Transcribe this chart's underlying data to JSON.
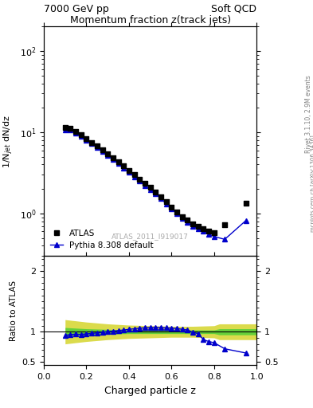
{
  "title_top_left": "7000 GeV pp",
  "title_top_right": "Soft QCD",
  "main_title": "Momentum fraction z(track jets)",
  "ylabel_main": "1/N$_{jet}$ dN/dz",
  "ylabel_ratio": "Ratio to ATLAS",
  "xlabel": "Charged particle z",
  "right_label_top": "Rivet 3.1.10, 2.9M events",
  "right_label_bot": "mcplots.cern.ch [arXiv:1306.3436]",
  "watermark": "ATLAS_2011_I919017",
  "xlim": [
    0.0,
    1.0
  ],
  "ylim_main": [
    0.3,
    200
  ],
  "ylim_ratio": [
    0.45,
    2.25
  ],
  "atlas_x": [
    0.1,
    0.125,
    0.15,
    0.175,
    0.2,
    0.225,
    0.25,
    0.275,
    0.3,
    0.325,
    0.35,
    0.375,
    0.4,
    0.425,
    0.45,
    0.475,
    0.5,
    0.525,
    0.55,
    0.575,
    0.6,
    0.625,
    0.65,
    0.675,
    0.7,
    0.725,
    0.75,
    0.775,
    0.8,
    0.85,
    0.95
  ],
  "atlas_y": [
    11.5,
    11.2,
    10.2,
    9.3,
    8.3,
    7.5,
    6.8,
    6.1,
    5.4,
    4.85,
    4.3,
    3.85,
    3.4,
    3.0,
    2.65,
    2.35,
    2.1,
    1.85,
    1.6,
    1.4,
    1.2,
    1.05,
    0.92,
    0.83,
    0.75,
    0.7,
    0.65,
    0.6,
    0.58,
    0.73,
    1.35
  ],
  "pythia_x": [
    0.1,
    0.125,
    0.15,
    0.175,
    0.2,
    0.225,
    0.25,
    0.275,
    0.3,
    0.325,
    0.35,
    0.375,
    0.4,
    0.425,
    0.45,
    0.475,
    0.5,
    0.525,
    0.55,
    0.575,
    0.6,
    0.625,
    0.65,
    0.675,
    0.7,
    0.725,
    0.75,
    0.775,
    0.8,
    0.85,
    0.95
  ],
  "pythia_y": [
    10.8,
    10.7,
    9.8,
    8.9,
    8.0,
    7.2,
    6.5,
    5.85,
    5.2,
    4.65,
    4.1,
    3.65,
    3.2,
    2.82,
    2.5,
    2.2,
    1.98,
    1.75,
    1.52,
    1.32,
    1.14,
    1.0,
    0.88,
    0.78,
    0.7,
    0.65,
    0.6,
    0.56,
    0.52,
    0.48,
    0.82
  ],
  "ratio_x": [
    0.1,
    0.125,
    0.15,
    0.175,
    0.2,
    0.225,
    0.25,
    0.275,
    0.3,
    0.325,
    0.35,
    0.375,
    0.4,
    0.425,
    0.45,
    0.475,
    0.5,
    0.525,
    0.55,
    0.575,
    0.6,
    0.625,
    0.65,
    0.675,
    0.7,
    0.725,
    0.75,
    0.775,
    0.8,
    0.85,
    0.95
  ],
  "ratio_y": [
    0.94,
    0.955,
    0.96,
    0.957,
    0.965,
    0.972,
    0.982,
    0.992,
    1.003,
    1.01,
    1.02,
    1.03,
    1.04,
    1.05,
    1.06,
    1.065,
    1.07,
    1.075,
    1.07,
    1.065,
    1.06,
    1.055,
    1.04,
    1.03,
    0.99,
    0.97,
    0.87,
    0.84,
    0.82,
    0.72,
    0.65
  ],
  "atlas_color": "#000000",
  "pythia_color": "#0000cc",
  "green_color": "#33cc33",
  "yellow_color": "#cccc00",
  "band_x": [
    0.1,
    0.2,
    0.3,
    0.4,
    0.5,
    0.6,
    0.7,
    0.8,
    0.825,
    0.875,
    1.0
  ],
  "yel_lo": [
    0.8,
    0.84,
    0.87,
    0.89,
    0.9,
    0.91,
    0.91,
    0.9,
    0.87,
    0.87,
    0.87
  ],
  "yel_hi": [
    1.2,
    1.16,
    1.13,
    1.11,
    1.1,
    1.09,
    1.09,
    1.1,
    1.13,
    1.13,
    1.13
  ],
  "grn_lo": [
    0.93,
    0.95,
    0.96,
    0.97,
    0.97,
    0.97,
    0.97,
    0.97,
    0.95,
    0.95,
    0.95
  ],
  "grn_hi": [
    1.07,
    1.05,
    1.04,
    1.03,
    1.03,
    1.03,
    1.03,
    1.03,
    1.05,
    1.05,
    1.05
  ]
}
